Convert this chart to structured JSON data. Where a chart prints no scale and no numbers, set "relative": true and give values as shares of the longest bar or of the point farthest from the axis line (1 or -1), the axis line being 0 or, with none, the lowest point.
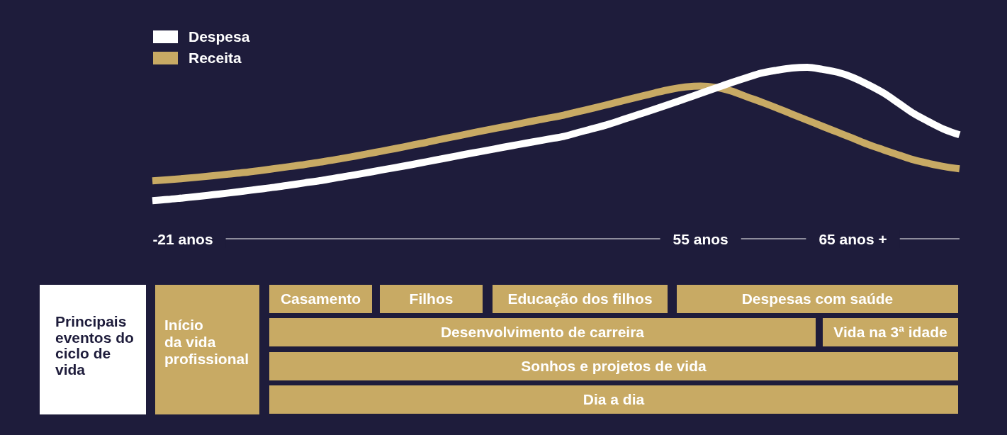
{
  "chart_data": {
    "type": "line",
    "relative": true,
    "legend": "top left",
    "marker": "none",
    "line_style": "solid",
    "categories": [
      null,
      null,
      "-21 anos",
      null,
      null,
      null,
      null,
      null,
      null,
      null,
      null,
      null,
      null,
      null,
      null,
      null,
      null,
      null,
      null,
      null,
      null,
      null,
      null,
      null,
      null,
      null,
      null,
      null,
      null,
      null,
      null,
      null,
      null,
      null,
      null,
      null,
      "55 anos",
      null,
      null,
      null,
      null,
      null,
      null,
      null,
      null,
      null,
      "65 anos +",
      null,
      null,
      null,
      null,
      null,
      null,
      null
    ],
    "series": [
      {
        "name": "Despesa",
        "color": "#ffffff",
        "values": [
          0.222,
          0.229,
          0.238,
          0.247,
          0.257,
          0.267,
          0.278,
          0.289,
          0.3,
          0.313,
          0.326,
          0.339,
          0.354,
          0.368,
          0.384,
          0.4,
          0.416,
          0.432,
          0.449,
          0.466,
          0.483,
          0.5,
          0.516,
          0.533,
          0.549,
          0.565,
          0.581,
          0.597,
          0.621,
          0.644,
          0.669,
          0.698,
          0.727,
          0.756,
          0.786,
          0.817,
          0.848,
          0.879,
          0.91,
          0.939,
          0.966,
          0.983,
          0.996,
          1,
          0.988,
          0.971,
          0.941,
          0.899,
          0.851,
          0.791,
          0.73,
          0.682,
          0.638,
          0.606
        ]
      },
      {
        "name": "Receita",
        "color": "#c8aa64",
        "values": [
          0.338,
          0.344,
          0.351,
          0.359,
          0.368,
          0.377,
          0.386,
          0.397,
          0.409,
          0.421,
          0.433,
          0.447,
          0.461,
          0.477,
          0.493,
          0.51,
          0.527,
          0.545,
          0.562,
          0.581,
          0.599,
          0.617,
          0.635,
          0.652,
          0.669,
          0.687,
          0.704,
          0.721,
          0.742,
          0.763,
          0.785,
          0.807,
          0.829,
          0.851,
          0.871,
          0.885,
          0.891,
          0.883,
          0.862,
          0.829,
          0.797,
          0.763,
          0.727,
          0.692,
          0.656,
          0.621,
          0.586,
          0.55,
          0.519,
          0.489,
          0.46,
          0.439,
          0.421,
          0.408
        ]
      }
    ],
    "annotations": [
      "Principais eventos do ciclo de vida",
      "Início\nda vida profissional",
      "Casamento",
      "Filhos",
      "Educação dos filhos",
      "Despesas com saúde",
      "Desenvolvimento de carreira",
      "Vida na 3ª idade",
      "Sonhos e projetos de vida",
      "Dia a dia"
    ]
  }
}
